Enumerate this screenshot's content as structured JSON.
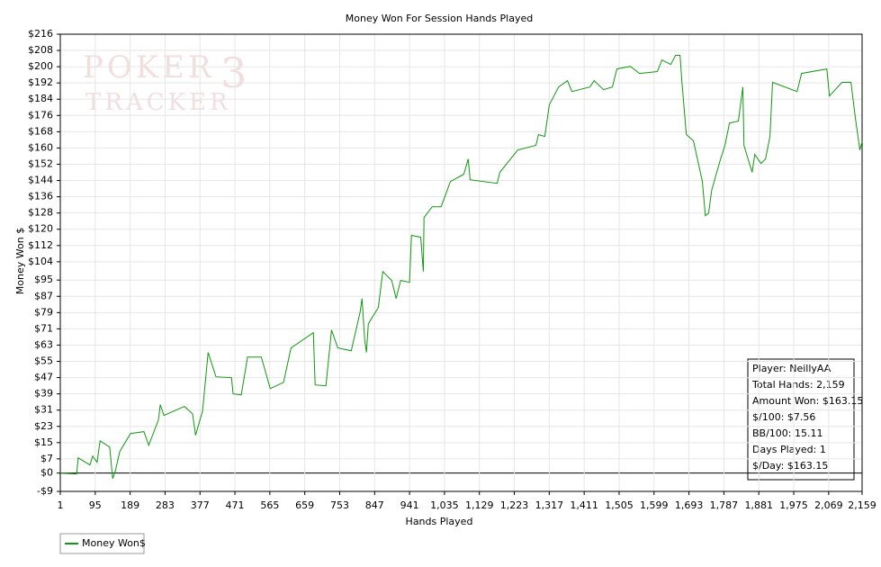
{
  "chart_data": {
    "type": "line",
    "title": "Money Won For Session Hands Played",
    "x_label": "Hands Played",
    "y_label": "Money Won $",
    "watermark": [
      "POKER",
      "TRACKER",
      "3"
    ],
    "info_box": [
      "Player: NeillyAA",
      "Total Hands: 2,159",
      "Amount Won: $163.15",
      "$/100: $7.56",
      "BB/100: 15.11",
      "Days Played: 1",
      "$/Day: $163.15"
    ],
    "grid": true,
    "legend": "bottom-left",
    "xlim": [
      1,
      2159
    ],
    "ylim": [
      -9,
      216
    ],
    "xticks": [
      1,
      95,
      189,
      283,
      377,
      471,
      565,
      659,
      753,
      847,
      941,
      {
        "value": 1035,
        "label": "1,035"
      },
      {
        "value": 1129,
        "label": "1,129"
      },
      {
        "value": 1223,
        "label": "1,223"
      },
      {
        "value": 1317,
        "label": "1,317"
      },
      {
        "value": 1411,
        "label": "1,411"
      },
      {
        "value": 1505,
        "label": "1,505"
      },
      {
        "value": 1599,
        "label": "1,599"
      },
      {
        "value": 1693,
        "label": "1,693"
      },
      {
        "value": 1787,
        "label": "1,787"
      },
      {
        "value": 1881,
        "label": "1,881"
      },
      {
        "value": 1975,
        "label": "1,975"
      },
      {
        "value": 2069,
        "label": "2,069"
      },
      {
        "value": 2159,
        "label": "2,159"
      }
    ],
    "yticks": [
      {
        "value": 216,
        "label": "$216"
      },
      {
        "value": 208,
        "label": "$208"
      },
      {
        "value": 200,
        "label": "$200"
      },
      {
        "value": 192,
        "label": "$192"
      },
      {
        "value": 184,
        "label": "$184"
      },
      {
        "value": 176,
        "label": "$176"
      },
      {
        "value": 168,
        "label": "$168"
      },
      {
        "value": 160,
        "label": "$160"
      },
      {
        "value": 152,
        "label": "$152"
      },
      {
        "value": 144,
        "label": "$144"
      },
      {
        "value": 136,
        "label": "$136"
      },
      {
        "value": 128,
        "label": "$128"
      },
      {
        "value": 120,
        "label": "$120"
      },
      {
        "value": 112,
        "label": "$112"
      },
      {
        "value": 104,
        "label": "$104"
      },
      {
        "value": 95,
        "label": "$95"
      },
      {
        "value": 87,
        "label": "$87"
      },
      {
        "value": 79,
        "label": "$79"
      },
      {
        "value": 71,
        "label": "$71"
      },
      {
        "value": 63,
        "label": "$63"
      },
      {
        "value": 55,
        "label": "$55"
      },
      {
        "value": 47,
        "label": "$47"
      },
      {
        "value": 39,
        "label": "$39"
      },
      {
        "value": 31,
        "label": "$31"
      },
      {
        "value": 23,
        "label": "$23"
      },
      {
        "value": 15,
        "label": "$15"
      },
      {
        "value": 7,
        "label": "$7"
      },
      {
        "value": 0,
        "label": "$0"
      },
      {
        "value": -9,
        "label": "-$9"
      }
    ],
    "x": [
      1,
      45,
      49,
      81,
      88,
      100,
      108,
      134,
      142,
      149,
      161,
      190,
      226,
      239,
      265,
      270,
      280,
      335,
      357,
      365,
      384,
      399,
      420,
      462,
      466,
      488,
      505,
      542,
      566,
      602,
      622,
      682,
      687,
      716,
      731,
      748,
      784,
      808,
      813,
      820,
      825,
      830,
      857,
      869,
      893,
      905,
      917,
      941,
      946,
      971,
      978,
      980,
      1002,
      1026,
      1051,
      1087,
      1099,
      1104,
      1177,
      1184,
      1232,
      1281,
      1288,
      1305,
      1317,
      1342,
      1366,
      1378,
      1426,
      1438,
      1463,
      1487,
      1499,
      1535,
      1560,
      1608,
      1620,
      1644,
      1657,
      1669,
      1674,
      1686,
      1705,
      1729,
      1737,
      1746,
      1754,
      1778,
      1790,
      1802,
      1826,
      1838,
      1841,
      1863,
      1870,
      1887,
      1899,
      1911,
      1918,
      1984,
      1996,
      2064,
      2071,
      2105,
      2129,
      2141,
      2153,
      2159
    ],
    "series": [
      {
        "name": "Money Won$",
        "color": "#119911",
        "values": [
          0,
          -0.4,
          7.5,
          4.0,
          8.4,
          5.3,
          15.9,
          12.8,
          -2.7,
          0.9,
          10.6,
          19.5,
          20.4,
          13.7,
          26.1,
          33.7,
          28.4,
          32.8,
          29.2,
          18.6,
          30.6,
          59.4,
          47.4,
          47.0,
          39.0,
          38.5,
          57.1,
          57.1,
          41.6,
          44.7,
          61.6,
          69.1,
          43.4,
          43.0,
          70.4,
          61.6,
          60.2,
          79.3,
          85.9,
          66.0,
          59.4,
          73.5,
          81.5,
          99.2,
          94.8,
          85.9,
          94.8,
          93.9,
          117.0,
          116.1,
          99.2,
          125.8,
          131.1,
          131.1,
          143.5,
          147.1,
          154.6,
          144.4,
          142.6,
          148.0,
          159.0,
          161.3,
          166.6,
          165.7,
          181.2,
          190.0,
          193.1,
          187.8,
          190.0,
          193.1,
          188.7,
          190.0,
          198.9,
          200.2,
          196.7,
          197.6,
          203.3,
          201.1,
          205.6,
          205.6,
          192.3,
          166.6,
          163.5,
          143.5,
          126.7,
          128.0,
          139.1,
          154.6,
          161.3,
          172.3,
          173.2,
          190.0,
          161.3,
          148.0,
          156.8,
          152.4,
          154.6,
          165.7,
          192.3,
          187.8,
          196.7,
          198.9,
          185.6,
          192.3,
          192.3,
          174.5,
          159.0,
          163.15
        ]
      }
    ]
  }
}
